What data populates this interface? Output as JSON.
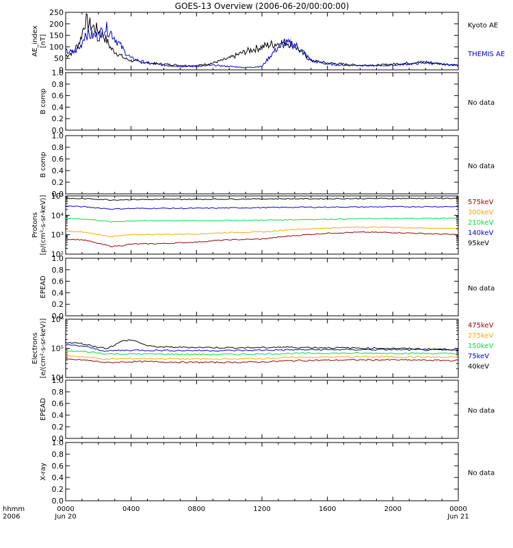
{
  "title": "GOES-13 Overview (2006-06-20/00:00:00)",
  "no_data_label": "No data",
  "x_axis": {
    "prefix_lines": [
      "hhmm",
      "2006"
    ],
    "ticks": [
      {
        "hour": 0,
        "label": "0000",
        "sub": "Jun 20"
      },
      {
        "hour": 4,
        "label": "0400",
        "sub": ""
      },
      {
        "hour": 8,
        "label": "0800",
        "sub": ""
      },
      {
        "hour": 12,
        "label": "1200",
        "sub": ""
      },
      {
        "hour": 16,
        "label": "1600",
        "sub": ""
      },
      {
        "hour": 20,
        "label": "2000",
        "sub": ""
      },
      {
        "hour": 24,
        "label": "0000",
        "sub": "Jun 21"
      }
    ],
    "range_hours": [
      0,
      24
    ]
  },
  "colors": {
    "black": "#000000",
    "blue": "#0000cc",
    "green": "#00dd44",
    "orange": "#ffa500",
    "darkred": "#990000"
  },
  "chart_data": [
    {
      "type": "line",
      "ylabel": [
        "AE_index",
        "[nT]"
      ],
      "yscale": "linear",
      "ylim": [
        0,
        250
      ],
      "yticks": [
        0,
        50,
        100,
        150,
        200,
        250
      ],
      "x": [
        0,
        0.5,
        0.9,
        1.2,
        1.5,
        2.0,
        2.4,
        2.8,
        3.2,
        3.6,
        4.0,
        5.0,
        6.0,
        7.0,
        8.0,
        9.0,
        10.0,
        11.0,
        12.0,
        12.5,
        13.0,
        13.5,
        14.0,
        14.5,
        15.0,
        16.0,
        17.0,
        18.0,
        19.0,
        20.0,
        21.0,
        22.0,
        23.0,
        24.0
      ],
      "series": [
        {
          "name": "Kyoto AE",
          "color": "black",
          "values": [
            60,
            80,
            130,
            215,
            195,
            170,
            140,
            90,
            70,
            50,
            40,
            30,
            25,
            20,
            18,
            30,
            50,
            80,
            100,
            110,
            115,
            120,
            105,
            70,
            40,
            30,
            25,
            20,
            20,
            25,
            30,
            35,
            25,
            20
          ]
        },
        {
          "name": "THEMIS AE",
          "color": "blue",
          "values": [
            80,
            75,
            100,
            160,
            150,
            145,
            185,
            160,
            120,
            80,
            50,
            30,
            20,
            15,
            15,
            20,
            15,
            10,
            15,
            60,
            100,
            115,
            110,
            80,
            40,
            25,
            20,
            20,
            18,
            20,
            25,
            30,
            25,
            20
          ]
        }
      ]
    },
    {
      "type": "line",
      "ylabel": [
        "B comp"
      ],
      "yscale": "linear",
      "ylim": [
        0,
        1
      ],
      "yticks": [
        0.0,
        0.2,
        0.4,
        0.6,
        0.8,
        1.0
      ],
      "no_data": true,
      "series": []
    },
    {
      "type": "line",
      "ylabel": [
        "B comp"
      ],
      "yscale": "linear",
      "ylim": [
        0,
        1
      ],
      "yticks": [
        0.0,
        0.2,
        0.4,
        0.6,
        0.8,
        1.0
      ],
      "no_data": true,
      "series": []
    },
    {
      "type": "line",
      "ylabel": [
        "Protons",
        "[p/(cm²-s-sr-keV)]"
      ],
      "yscale": "log",
      "ylim": [
        100,
        100000
      ],
      "yticks": [
        100,
        1000,
        10000,
        100000
      ],
      "ytick_labels": [
        "10²",
        "10³",
        "10⁴",
        "10⁵"
      ],
      "x": [
        0,
        1,
        2,
        2.8,
        3.5,
        4,
        6,
        8,
        10,
        12,
        13,
        14,
        16,
        18,
        20,
        22,
        24
      ],
      "series": [
        {
          "name": "575keV",
          "color": "darkred",
          "values": [
            600,
            550,
            350,
            250,
            280,
            330,
            350,
            420,
            550,
            600,
            750,
            900,
            1200,
            1350,
            1300,
            1150,
            1000
          ]
        },
        {
          "name": "300keV",
          "color": "orange",
          "values": [
            1500,
            1400,
            1000,
            800,
            900,
            1000,
            1050,
            1100,
            1300,
            1400,
            1600,
            1900,
            2200,
            2500,
            2400,
            2200,
            2100
          ]
        },
        {
          "name": "210keV",
          "color": "green",
          "values": [
            7000,
            6500,
            5500,
            4500,
            5000,
            5200,
            5300,
            5300,
            5500,
            5600,
            5800,
            6000,
            6300,
            6600,
            6800,
            7000,
            7200
          ]
        },
        {
          "name": "140keV",
          "color": "blue",
          "values": [
            30000,
            28000,
            24000,
            21000,
            22000,
            22500,
            23000,
            23000,
            24000,
            25000,
            25500,
            26000,
            26500,
            27000,
            27500,
            28000,
            28000
          ]
        },
        {
          "name": "95keV",
          "color": "black",
          "values": [
            75000,
            72000,
            68000,
            62000,
            64000,
            65000,
            66000,
            67000,
            69000,
            70000,
            71000,
            71000,
            72000,
            73000,
            74000,
            75000,
            76000
          ]
        }
      ]
    },
    {
      "type": "line",
      "ylabel": [
        "EPEAD"
      ],
      "yscale": "linear",
      "ylim": [
        0,
        1
      ],
      "yticks": [
        0.0,
        0.2,
        0.4,
        0.6,
        0.8,
        1.0
      ],
      "no_data": true,
      "series": []
    },
    {
      "type": "line",
      "ylabel": [
        "Electrons",
        "[e/(cm²-s-sr-keV)]"
      ],
      "yscale": "log",
      "ylim": [
        10000,
        1000000
      ],
      "yticks": [
        10000,
        100000,
        1000000
      ],
      "ytick_labels": [
        "10⁴",
        "10⁵",
        "10⁶"
      ],
      "x": [
        0,
        1,
        2,
        2.5,
        3,
        3.5,
        4,
        4.5,
        5,
        6,
        8,
        10,
        12,
        13,
        14,
        16,
        18,
        20,
        22,
        24
      ],
      "series": [
        {
          "name": "475keV",
          "color": "darkred",
          "values": [
            42000,
            40000,
            35000,
            32000,
            33000,
            34000,
            34500,
            35000,
            35000,
            34000,
            33000,
            33000,
            34000,
            36000,
            38000,
            39000,
            40000,
            40000,
            39000,
            38000
          ]
        },
        {
          "name": "275keV",
          "color": "orange",
          "values": [
            55000,
            52000,
            45000,
            42000,
            43000,
            44000,
            44500,
            45000,
            45000,
            44000,
            43000,
            43000,
            45000,
            47000,
            49000,
            50000,
            51000,
            51000,
            50000,
            49000
          ]
        },
        {
          "name": "150keV",
          "color": "green",
          "values": [
            80000,
            78000,
            70000,
            64000,
            64000,
            64000,
            64000,
            64000,
            64000,
            63000,
            62000,
            62000,
            64000,
            66000,
            67000,
            68000,
            68000,
            68000,
            67000,
            66000
          ]
        },
        {
          "name": "75keV",
          "color": "blue",
          "values": [
            130000,
            120000,
            90000,
            80000,
            84000,
            85000,
            86000,
            86000,
            86000,
            85000,
            84000,
            84000,
            86000,
            88000,
            89000,
            90000,
            90000,
            90000,
            88000,
            86000
          ]
        },
        {
          "name": "40keV",
          "color": "black",
          "values": [
            160000,
            145000,
            110000,
            100000,
            130000,
            180000,
            195000,
            160000,
            120000,
            110000,
            108000,
            105000,
            105000,
            110000,
            108000,
            105000,
            102000,
            100000,
            95000,
            92000
          ]
        }
      ]
    },
    {
      "type": "line",
      "ylabel": [
        "EPEAD"
      ],
      "yscale": "linear",
      "ylim": [
        0,
        1
      ],
      "yticks": [
        0.0,
        0.2,
        0.4,
        0.6,
        0.8,
        1.0
      ],
      "no_data": true,
      "series": []
    },
    {
      "type": "line",
      "ylabel": [
        "X-ray"
      ],
      "yscale": "linear",
      "ylim": [
        0,
        1
      ],
      "yticks": [
        0.0,
        0.2,
        0.4,
        0.6,
        0.8,
        1.0
      ],
      "no_data": true,
      "series": []
    }
  ]
}
